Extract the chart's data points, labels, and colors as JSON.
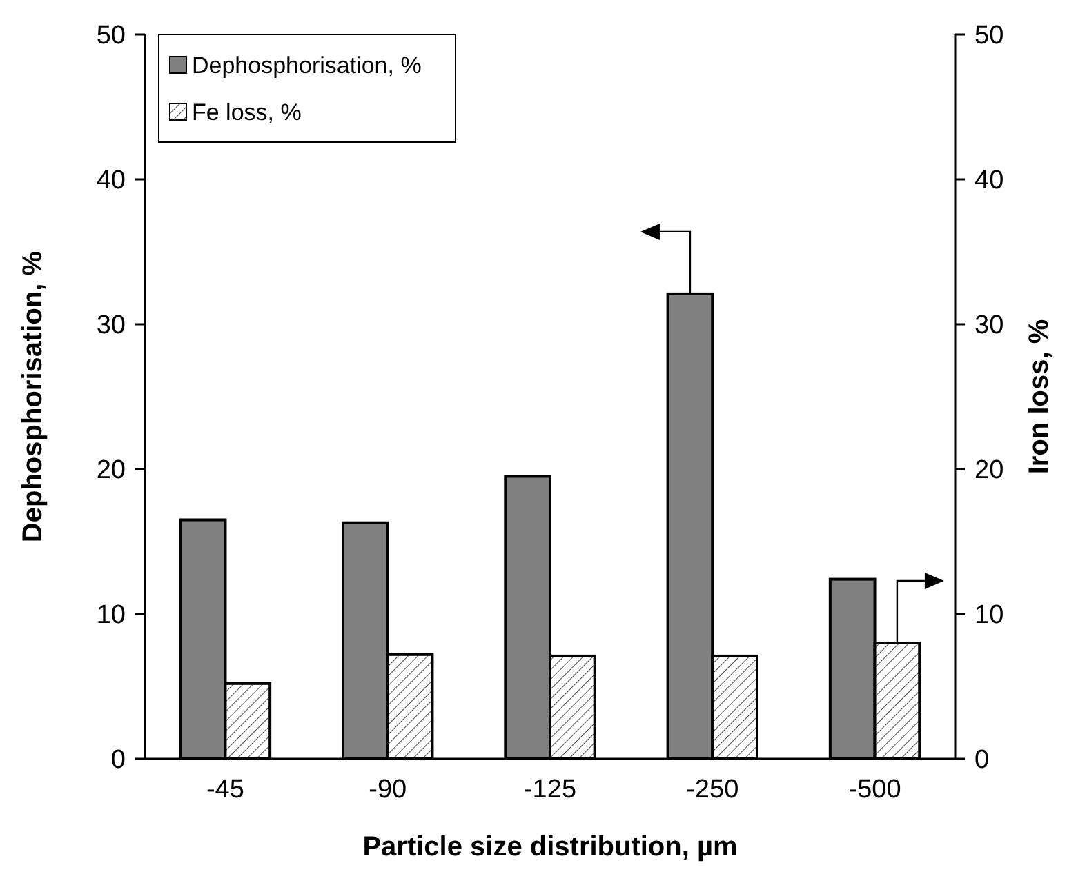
{
  "chart_data": {
    "type": "bar",
    "xlabel": "Particle size distribution, µm",
    "ylabel": "Dephosphorisation, %",
    "y2label": "Iron loss, %",
    "categories": [
      "-45",
      "-90",
      "-125",
      "-250",
      "-500"
    ],
    "series": [
      {
        "name": "Dephosphorisation, %",
        "color": "#808080",
        "values": [
          16.5,
          16.3,
          19.5,
          32.1,
          12.4
        ]
      },
      {
        "name": "Fe loss, %",
        "color": "#000000",
        "axis": "y2",
        "values": [
          5.2,
          7.2,
          7.1,
          7.1,
          8.0
        ]
      }
    ],
    "ylim": [
      0,
      50
    ],
    "yticks": [
      0,
      10,
      20,
      30,
      40,
      50
    ],
    "y2lim": [
      0,
      50
    ],
    "y2ticks": [
      0,
      10,
      20,
      30,
      40,
      50
    ],
    "grid": false,
    "legend": "top left"
  }
}
